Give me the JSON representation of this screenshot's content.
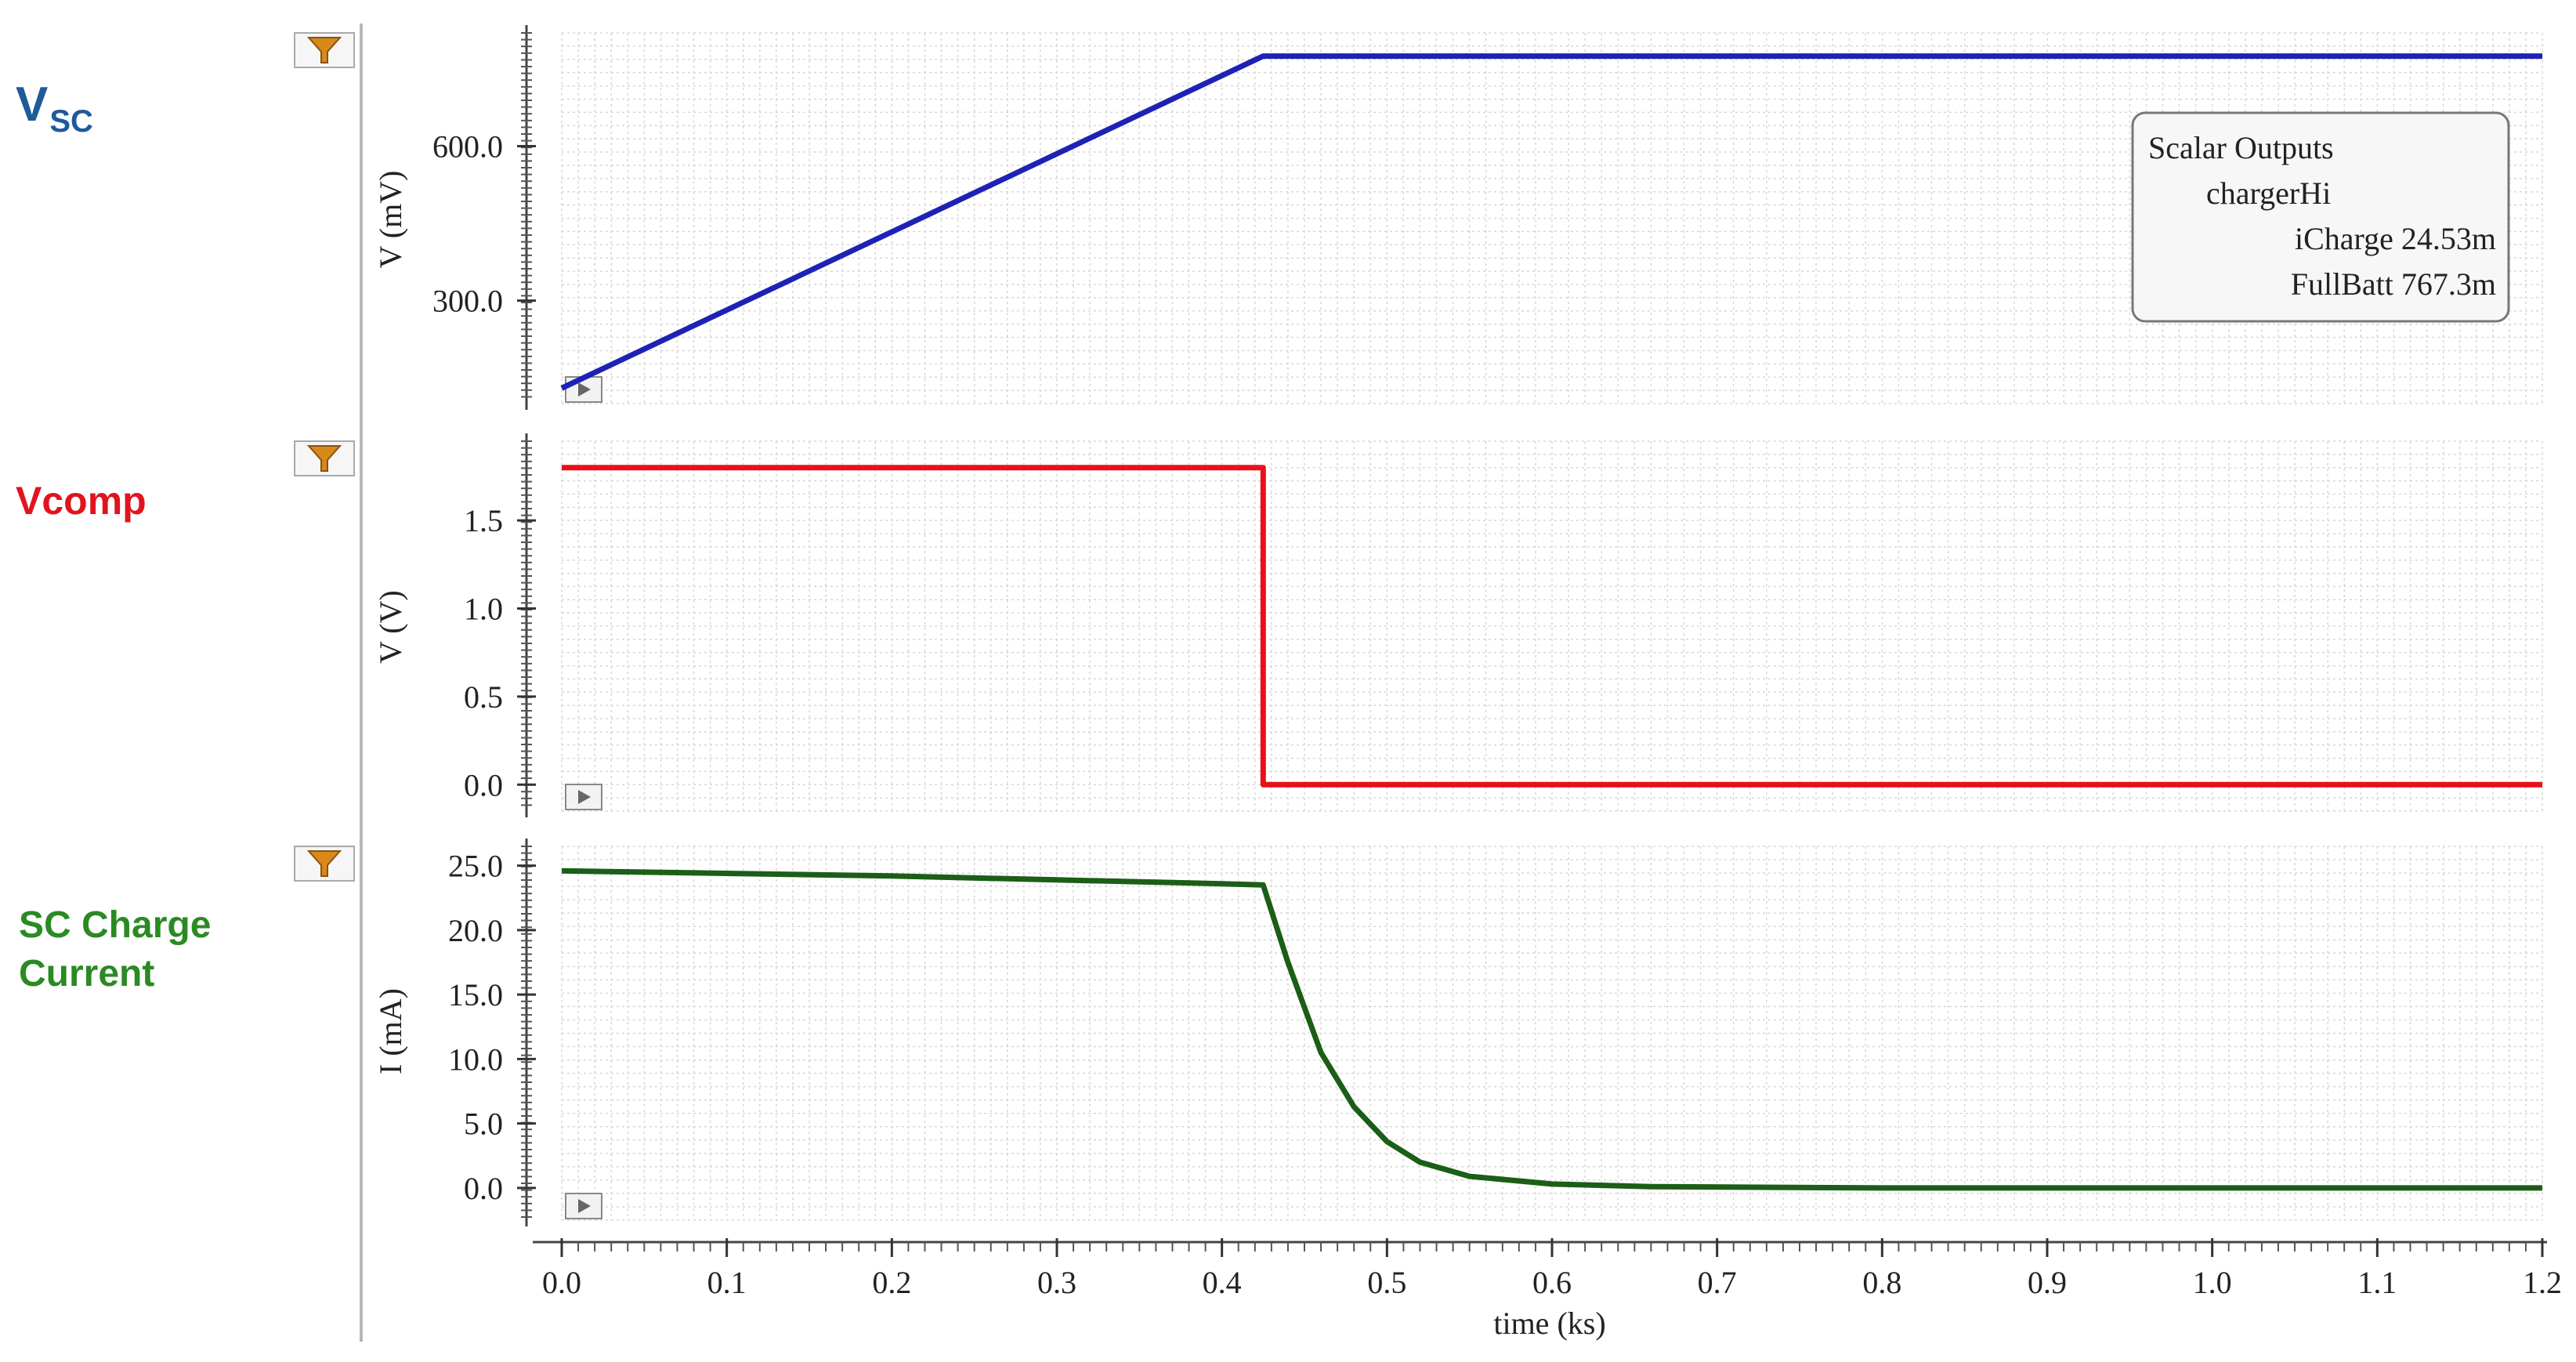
{
  "side_labels": {
    "vsc_main": "V",
    "vsc_sub": "SC",
    "vcomp": "Vcomp",
    "scc_line1": "SC Charge",
    "scc_line2": "Current"
  },
  "legend": {
    "title": "Scalar Outputs",
    "group": "chargerHi",
    "items": [
      "iCharge 24.53m",
      "FullBatt 767.3m"
    ]
  },
  "colors": {
    "vsc": "#1e22b4",
    "vcomp": "#e8101a",
    "current": "#1b5e17",
    "label_vsc": "#1f5a99",
    "label_vcomp": "#e0141e",
    "label_current": "#2a8a23",
    "filter_icon": "#d9891a"
  },
  "icons": [
    "filter-icon",
    "play-icon"
  ],
  "chart_data": [
    {
      "type": "line",
      "name": "vsc",
      "ylabel": "V (mV)",
      "xlim": [
        0,
        1.2
      ],
      "ylim": [
        100,
        820
      ],
      "yticks": [
        300.0,
        600.0
      ],
      "ytick_labels": [
        "300.0",
        "600.0"
      ],
      "grid": true,
      "series": [
        {
          "x": [
            0.0,
            0.425,
            1.2
          ],
          "y": [
            130,
            775,
            775
          ]
        }
      ]
    },
    {
      "type": "line",
      "name": "vcomp",
      "ylabel": "V (V)",
      "xlim": [
        0,
        1.2
      ],
      "ylim": [
        -0.15,
        1.95
      ],
      "yticks": [
        0.0,
        0.5,
        1.0,
        1.5
      ],
      "ytick_labels": [
        "0.0",
        "0.5",
        "1.0",
        "1.5"
      ],
      "grid": true,
      "series": [
        {
          "x": [
            0.0,
            0.425,
            0.425,
            1.2
          ],
          "y": [
            1.8,
            1.8,
            0.0,
            0.0
          ]
        }
      ]
    },
    {
      "type": "line",
      "name": "current",
      "ylabel": "I (mA)",
      "xlabel": "time (ks)",
      "xlim": [
        0,
        1.2
      ],
      "ylim": [
        -2.5,
        26.5
      ],
      "yticks": [
        0.0,
        5.0,
        10.0,
        15.0,
        20.0,
        25.0
      ],
      "ytick_labels": [
        "0.0",
        "5.0",
        "10.0",
        "15.0",
        "20.0",
        "25.0"
      ],
      "xticks": [
        0.0,
        0.1,
        0.2,
        0.3,
        0.4,
        0.5,
        0.6,
        0.7,
        0.8,
        0.9,
        1.0,
        1.1,
        1.2
      ],
      "xtick_labels": [
        "0.0",
        "0.1",
        "0.2",
        "0.3",
        "0.4",
        "0.5",
        "0.6",
        "0.7",
        "0.8",
        "0.9",
        "1.0",
        "1.1",
        "1.2"
      ],
      "grid": true,
      "series": [
        {
          "x": [
            0.0,
            0.1,
            0.2,
            0.3,
            0.4,
            0.425,
            0.44,
            0.46,
            0.48,
            0.5,
            0.52,
            0.55,
            0.6,
            0.66,
            0.8,
            1.2
          ],
          "y": [
            24.6,
            24.4,
            24.2,
            23.9,
            23.6,
            23.5,
            17.5,
            10.5,
            6.3,
            3.6,
            2.0,
            0.9,
            0.3,
            0.1,
            0.0,
            0.0
          ]
        }
      ]
    }
  ]
}
